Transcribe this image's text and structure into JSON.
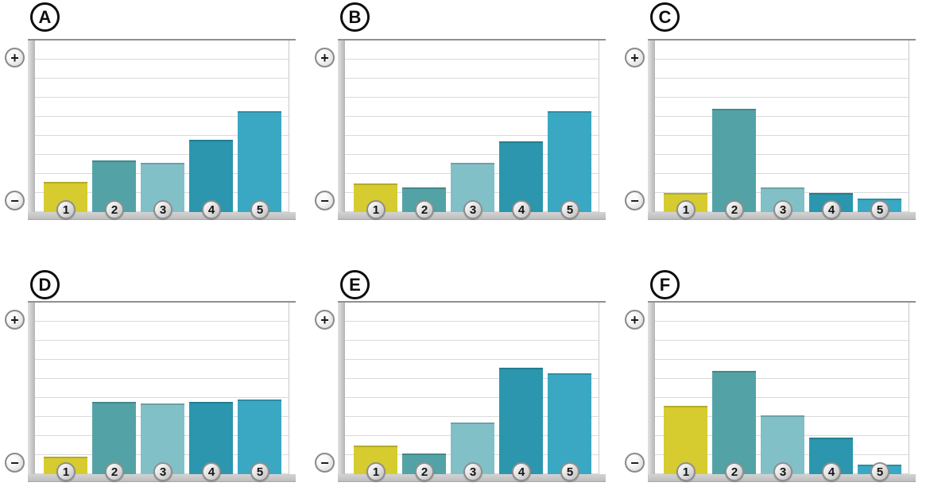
{
  "icons": {
    "plus": "+",
    "minus": "−"
  },
  "colors": {
    "bars": [
      "#d6cc2f",
      "#53a3a6",
      "#82c0c7",
      "#2b96ad",
      "#3aa8c3"
    ],
    "axis_gray": "#c2c2c2",
    "gridline": "#dadada",
    "panel_label_ink": "#0d0d0d",
    "background": "#ffffff"
  },
  "chart_data": [
    {
      "panel": "A",
      "type": "bar",
      "categories": [
        "1",
        "2",
        "3",
        "4",
        "5"
      ],
      "values": [
        1.6,
        2.7,
        2.6,
        3.8,
        5.3
      ],
      "ylim": [
        0,
        9
      ],
      "value_scale": "gridline units, estimated (no numeric axis shown)",
      "y_axis_top_symbol": "+",
      "y_axis_bottom_symbol": "−",
      "grid": "horizontal",
      "legend": "none"
    },
    {
      "panel": "B",
      "type": "bar",
      "categories": [
        "1",
        "2",
        "3",
        "4",
        "5"
      ],
      "values": [
        1.5,
        1.3,
        2.6,
        3.7,
        5.3
      ],
      "ylim": [
        0,
        9
      ],
      "value_scale": "gridline units, estimated (no numeric axis shown)",
      "y_axis_top_symbol": "+",
      "y_axis_bottom_symbol": "−",
      "grid": "horizontal",
      "legend": "none"
    },
    {
      "panel": "C",
      "type": "bar",
      "categories": [
        "1",
        "2",
        "3",
        "4",
        "5"
      ],
      "values": [
        1.0,
        5.4,
        1.3,
        1.0,
        0.7
      ],
      "ylim": [
        0,
        9
      ],
      "value_scale": "gridline units, estimated (no numeric axis shown)",
      "y_axis_top_symbol": "+",
      "y_axis_bottom_symbol": "−",
      "grid": "horizontal",
      "legend": "none"
    },
    {
      "panel": "D",
      "type": "bar",
      "categories": [
        "1",
        "2",
        "3",
        "4",
        "5"
      ],
      "values": [
        0.9,
        3.8,
        3.7,
        3.8,
        3.9
      ],
      "ylim": [
        0,
        9
      ],
      "value_scale": "gridline units, estimated (no numeric axis shown)",
      "y_axis_top_symbol": "+",
      "y_axis_bottom_symbol": "−",
      "grid": "horizontal",
      "legend": "none"
    },
    {
      "panel": "E",
      "type": "bar",
      "categories": [
        "1",
        "2",
        "3",
        "4",
        "5"
      ],
      "values": [
        1.5,
        1.1,
        2.7,
        5.6,
        5.3
      ],
      "ylim": [
        0,
        9
      ],
      "value_scale": "gridline units, estimated (no numeric axis shown)",
      "y_axis_top_symbol": "+",
      "y_axis_bottom_symbol": "−",
      "grid": "horizontal",
      "legend": "none"
    },
    {
      "panel": "F",
      "type": "bar",
      "categories": [
        "1",
        "2",
        "3",
        "4",
        "5"
      ],
      "values": [
        3.6,
        5.4,
        3.1,
        1.9,
        0.5
      ],
      "ylim": [
        0,
        9
      ],
      "value_scale": "gridline units, estimated (no numeric axis shown)",
      "y_axis_top_symbol": "+",
      "y_axis_bottom_symbol": "−",
      "grid": "horizontal",
      "legend": "none"
    }
  ]
}
